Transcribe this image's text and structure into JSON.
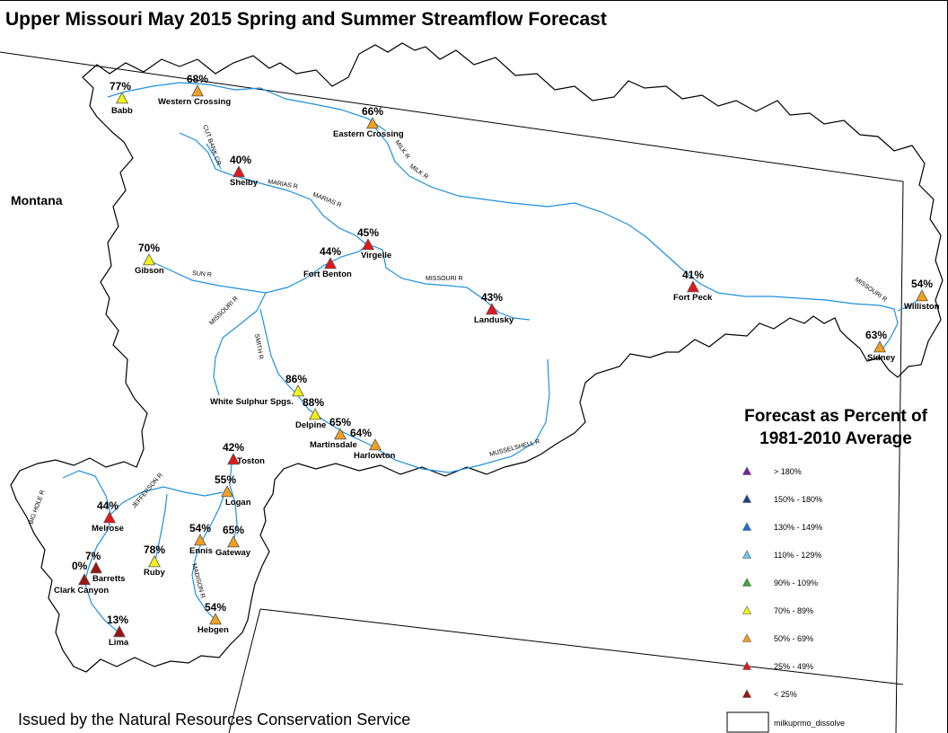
{
  "map": {
    "title": "Upper Missouri May 2015 Spring and Summer Streamflow Forecast",
    "state_label": "Montana",
    "credit": "Issued by the Natural Resources Conservation Service"
  },
  "legend": {
    "title_line1": "Forecast as Percent of",
    "title_line2": "1981-2010 Average",
    "classes": [
      {
        "label": "> 180%",
        "color": "#7b1fa2"
      },
      {
        "label": "150% - 180%",
        "color": "#1a3f8f"
      },
      {
        "label": "130% - 149%",
        "color": "#1f6fd6"
      },
      {
        "label": "110% - 129%",
        "color": "#6ec6f0"
      },
      {
        "label": "90% - 109%",
        "color": "#3aa832"
      },
      {
        "label": "70% - 89%",
        "color": "#f2f218"
      },
      {
        "label": "50% - 69%",
        "color": "#f0a020"
      },
      {
        "label": "25% - 49%",
        "color": "#e0181a"
      },
      {
        "label": "< 25%",
        "color": "#9a1412"
      }
    ],
    "boundary_label": "milkuprmo_dissolve"
  },
  "stations": [
    {
      "name": "Babb",
      "pct": "77%",
      "class": 5
    },
    {
      "name": "Western Crossing",
      "pct": "68%",
      "class": 6
    },
    {
      "name": "Eastern Crossing",
      "pct": "66%",
      "class": 6
    },
    {
      "name": "Shelby",
      "pct": "40%",
      "class": 7
    },
    {
      "name": "Virgelle",
      "pct": "45%",
      "class": 7
    },
    {
      "name": "Fort Benton",
      "pct": "44%",
      "class": 7
    },
    {
      "name": "Gibson",
      "pct": "70%",
      "class": 5
    },
    {
      "name": "Landusky",
      "pct": "43%",
      "class": 7
    },
    {
      "name": "Fort Peck",
      "pct": "41%",
      "class": 7
    },
    {
      "name": "Williston",
      "pct": "54%",
      "class": 6
    },
    {
      "name": "Sidney",
      "pct": "63%",
      "class": 6
    },
    {
      "name": "White Sulphur Spgs.",
      "pct": "86%",
      "class": 5
    },
    {
      "name": "Delpine",
      "pct": "88%",
      "class": 5
    },
    {
      "name": "Martinsdale",
      "pct": "65%",
      "class": 6
    },
    {
      "name": "Harlowton",
      "pct": "64%",
      "class": 6
    },
    {
      "name": "Toston",
      "pct": "42%",
      "class": 7
    },
    {
      "name": "Logan",
      "pct": "55%",
      "class": 6
    },
    {
      "name": "Melrose",
      "pct": "44%",
      "class": 7
    },
    {
      "name": "Ennis",
      "pct": "54%",
      "class": 6
    },
    {
      "name": "Gateway",
      "pct": "65%",
      "class": 6
    },
    {
      "name": "Ruby",
      "pct": "78%",
      "class": 5
    },
    {
      "name": "Barretts",
      "pct": "7%",
      "class": 8
    },
    {
      "name": "Clark Canyon",
      "pct": "0%",
      "class": 8
    },
    {
      "name": "Lima",
      "pct": "13%",
      "class": 8
    },
    {
      "name": "Hebgen",
      "pct": "54%",
      "class": 6
    }
  ],
  "rivers": [
    "CUT BANK CR",
    "MARIAS R",
    "MARIAS R",
    "MILK R",
    "MILK R",
    "SUN R",
    "MISSOURI R",
    "MISSOURI R",
    "MISSOURI R",
    "SMITH R",
    "MUSSELSHELL R",
    "JEFFERSON R",
    "BIG HOLE R",
    "MADISON R"
  ],
  "colors": {
    "river": "#1e90e0",
    "boundary": "#000000"
  }
}
